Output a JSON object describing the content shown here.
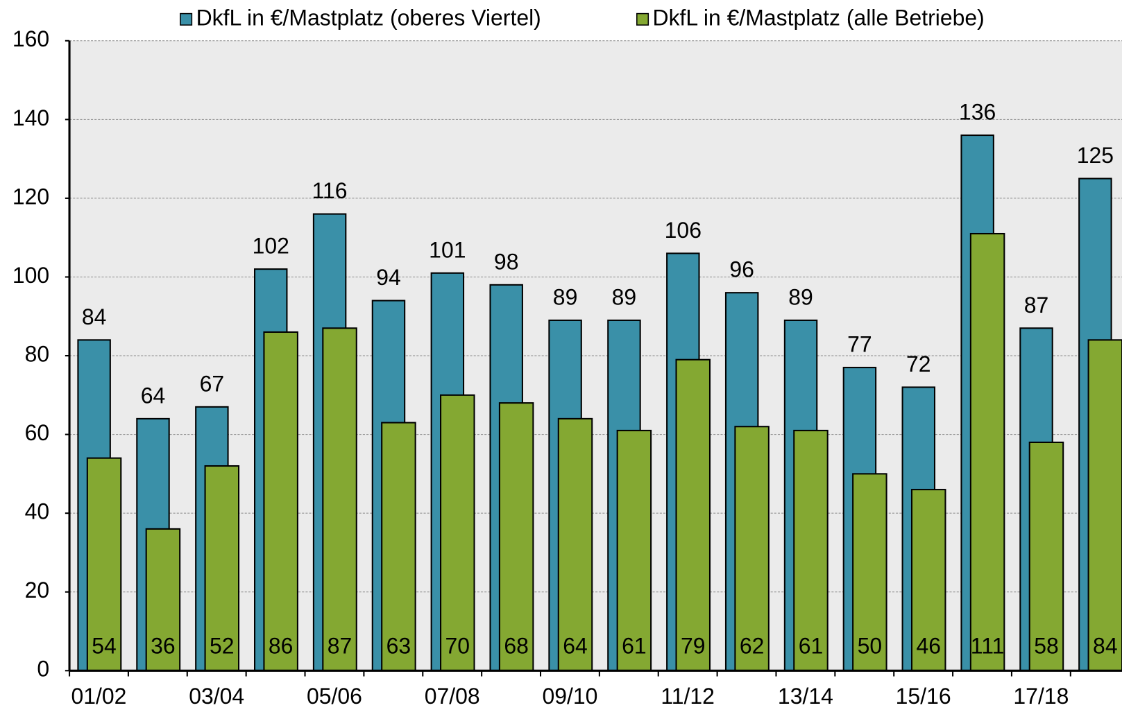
{
  "chart_data": {
    "type": "bar",
    "categories": [
      "01/02",
      null,
      "03/04",
      null,
      "05/06",
      null,
      "07/08",
      null,
      "09/10",
      null,
      "11/12",
      null,
      "13/14",
      null,
      "15/16",
      null,
      "17/18",
      null
    ],
    "series": [
      {
        "name": "DkfL in €/Mastplatz (oberes Viertel)",
        "color": "#3a90a8",
        "values": [
          84,
          64,
          67,
          102,
          116,
          94,
          101,
          98,
          89,
          89,
          106,
          96,
          89,
          77,
          72,
          136,
          87,
          125
        ]
      },
      {
        "name": "DkfL in €/Mastplatz (alle Betriebe)",
        "color": "#84a832",
        "values": [
          54,
          36,
          52,
          86,
          87,
          63,
          70,
          68,
          64,
          61,
          79,
          62,
          61,
          50,
          46,
          111,
          58,
          84
        ]
      }
    ],
    "ylim": [
      0,
      160
    ],
    "yticks": [
      0,
      20,
      40,
      60,
      80,
      100,
      120,
      140,
      160
    ],
    "grid": true,
    "legend": "top"
  }
}
